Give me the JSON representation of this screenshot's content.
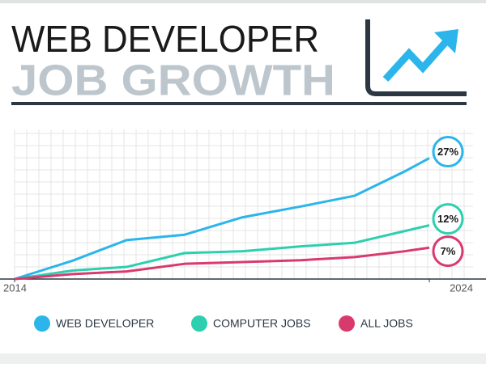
{
  "chart_data": {
    "type": "line",
    "title": "WEB DEVELOPER",
    "subtitle": "JOB GROWTH",
    "xlim": [
      2014,
      2024
    ],
    "xticks": [
      2014,
      2024
    ],
    "ylim": [
      0,
      28
    ],
    "series": [
      {
        "name": "WEB DEVELOPER",
        "color": "#2bb5ea",
        "x": [
          2014,
          2015.4,
          2016.7,
          2018.1,
          2019.5,
          2020.9,
          2022.2,
          2023.4,
          2024
        ],
        "values": [
          0,
          4.1,
          8.7,
          9.9,
          13.8,
          16.2,
          18.6,
          24,
          27
        ],
        "value_labels": [
          null,
          null,
          null,
          null,
          null,
          null,
          null,
          null,
          "27%"
        ]
      },
      {
        "name": "COMPUTER JOBS",
        "color": "#2dcfb0",
        "x": [
          2014,
          2015.4,
          2016.7,
          2018.1,
          2019.5,
          2020.9,
          2022.2,
          2023.4,
          2024
        ],
        "values": [
          0,
          1.9,
          2.7,
          5.8,
          6.2,
          7.3,
          8.1,
          10.7,
          12
        ],
        "value_labels": [
          null,
          null,
          null,
          null,
          null,
          null,
          null,
          null,
          "12%"
        ]
      },
      {
        "name": "ALL JOBS",
        "color": "#d93a6e",
        "x": [
          2014,
          2015.4,
          2016.7,
          2018.1,
          2019.5,
          2020.9,
          2022.2,
          2023.4,
          2024
        ],
        "values": [
          0,
          1.1,
          1.7,
          3.4,
          3.8,
          4.2,
          4.9,
          6.2,
          7
        ],
        "value_labels": [
          null,
          null,
          null,
          null,
          null,
          null,
          null,
          null,
          "7%"
        ]
      }
    ]
  }
}
